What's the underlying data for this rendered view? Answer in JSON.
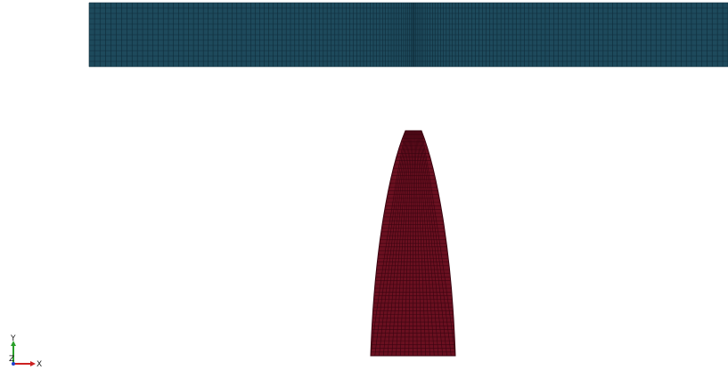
{
  "viewport": {
    "background": "#ffffff",
    "plate": {
      "fill": "#1e4a5c",
      "line_color": "#0e2c3a",
      "columns": 160,
      "rows": 12
    },
    "projectile": {
      "fill": "#6a1020",
      "line_color": "#3a0410",
      "columns": 20,
      "rows": 60
    }
  },
  "orientation_axes": {
    "y_label": "Y",
    "z_label": "Z",
    "x_label": "X",
    "y_color": "#2aa02a",
    "x_color": "#cc2020",
    "z_color": "#2040cc"
  }
}
